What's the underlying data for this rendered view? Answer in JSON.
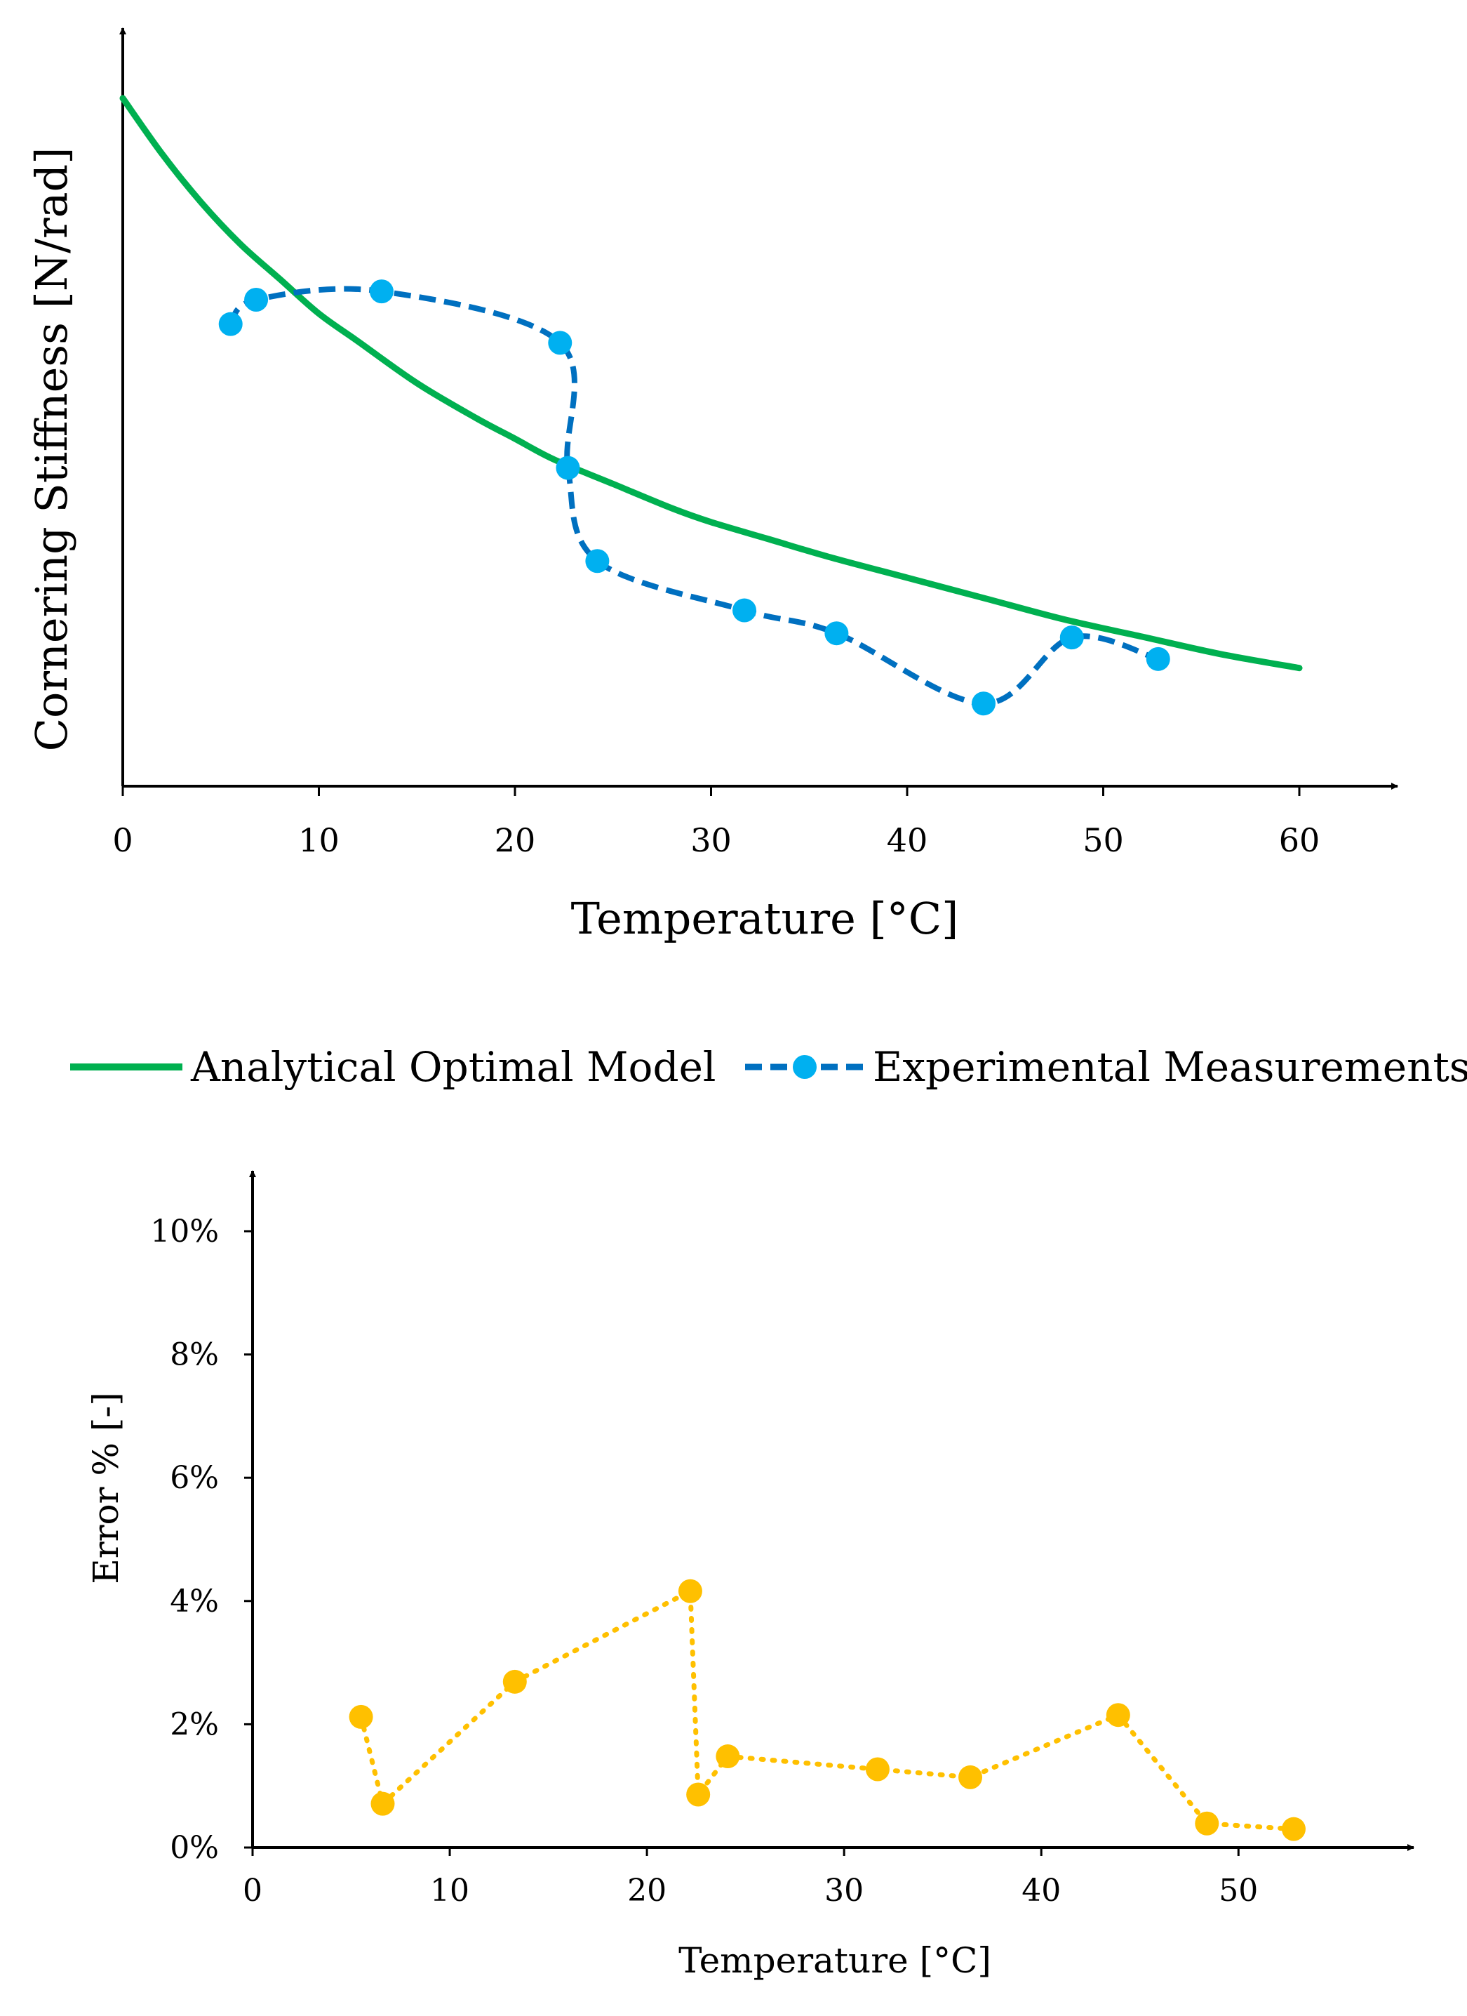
{
  "chart_data": [
    {
      "type": "line",
      "xlabel": "Temperature [°C]",
      "ylabel": "Cornering Stiffness [N/rad]",
      "xlim": [
        0,
        60
      ],
      "x_ticks": [
        "0",
        "10",
        "20",
        "30",
        "40",
        "50",
        "60"
      ],
      "ylim": [
        0,
        1
      ],
      "y_ticks_shown": false,
      "grid": false,
      "legend": {
        "position": "bottom",
        "entries": [
          "Analytical Optimal Model",
          "Experimental Measurements"
        ]
      },
      "series": [
        {
          "name": "Analytical Optimal Model",
          "style": "solid",
          "color": "#00B050",
          "x": [
            0,
            2,
            4,
            6,
            8,
            10,
            12,
            15,
            18,
            20,
            22,
            25,
            28,
            30,
            33,
            36,
            40,
            44,
            48,
            52,
            56,
            60
          ],
          "y": [
            0.99,
            0.91,
            0.84,
            0.78,
            0.73,
            0.68,
            0.64,
            0.58,
            0.53,
            0.5,
            0.47,
            0.435,
            0.4,
            0.38,
            0.355,
            0.33,
            0.3,
            0.27,
            0.24,
            0.215,
            0.19,
            0.17
          ]
        },
        {
          "name": "Experimental Measurements",
          "style": "dashed",
          "line_color": "#0070C0",
          "marker_color": "#00B0F0",
          "x": [
            5.5,
            6.8,
            13.2,
            22.3,
            22.7,
            24.2,
            31.7,
            36.4,
            43.9,
            48.4,
            52.8
          ],
          "y": [
            0.665,
            0.7,
            0.712,
            0.638,
            0.458,
            0.324,
            0.253,
            0.22,
            0.119,
            0.214,
            0.183
          ]
        }
      ]
    },
    {
      "type": "line",
      "xlabel": "Temperature [°C]",
      "ylabel": "Error % [-]",
      "xlim": [
        0,
        57
      ],
      "x_ticks": [
        "0",
        "10",
        "20",
        "30",
        "40",
        "50"
      ],
      "ylim": [
        0,
        10
      ],
      "y_ticks": [
        "0%",
        "2%",
        "4%",
        "6%",
        "8%",
        "10%"
      ],
      "grid": false,
      "series": [
        {
          "style": "dotted",
          "color": "#FFC000",
          "x": [
            5.5,
            6.6,
            13.3,
            22.2,
            22.6,
            24.1,
            31.7,
            36.4,
            43.9,
            48.4,
            52.8
          ],
          "y": [
            2.12,
            0.71,
            2.69,
            4.16,
            0.86,
            1.48,
            1.27,
            1.14,
            2.15,
            0.39,
            0.3
          ]
        }
      ]
    }
  ]
}
